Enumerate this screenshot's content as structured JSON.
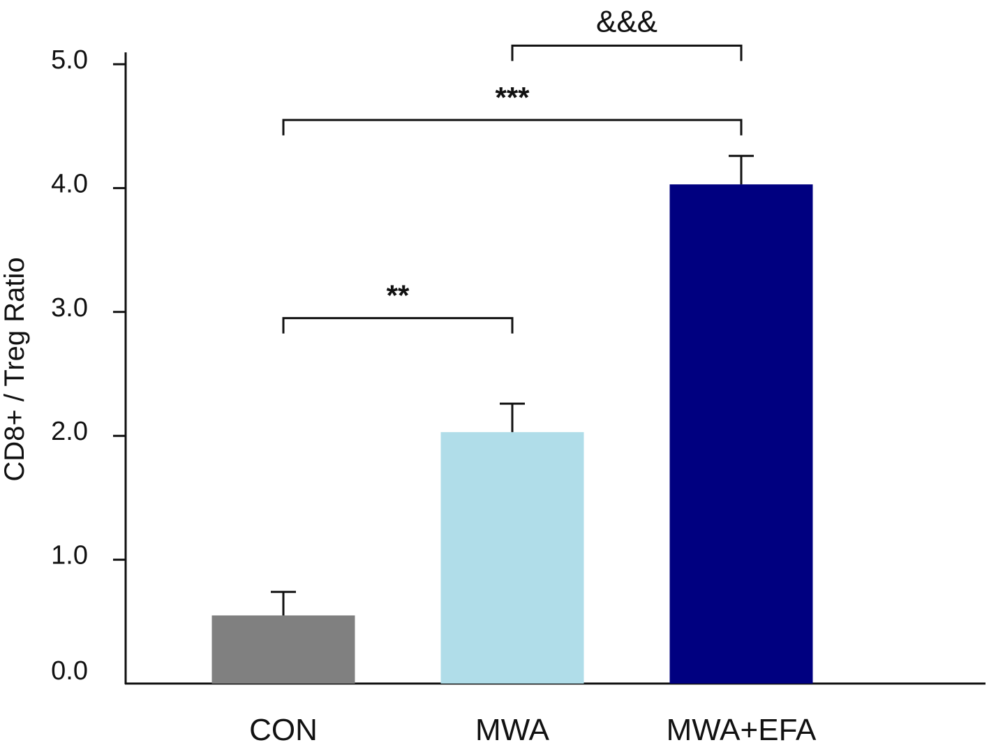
{
  "chart_data": {
    "type": "bar",
    "categories": [
      "CON",
      "MWA",
      "MWA+EFA"
    ],
    "values": [
      0.55,
      2.03,
      4.03
    ],
    "errors": [
      0.19,
      0.23,
      0.23
    ],
    "colors": [
      "#808080",
      "#b0dde9",
      "#000080"
    ],
    "ylabel": "CD8+ / Treg Ratio",
    "xlabel": "",
    "ylim": [
      0,
      5.0
    ],
    "yticks": [
      0.0,
      1.0,
      2.0,
      3.0,
      4.0,
      5.0
    ],
    "ytick_labels": [
      "0.0",
      "1.0",
      "2.0",
      "3.0",
      "4.0",
      "5.0"
    ],
    "grid": false,
    "significance": [
      {
        "from": "CON",
        "to": "MWA",
        "label": "**",
        "level": 2.95
      },
      {
        "from": "CON",
        "to": "MWA+EFA",
        "label": "***",
        "level": 4.55
      },
      {
        "from": "MWA",
        "to": "MWA+EFA",
        "label": "&&&",
        "level": 5.15
      }
    ]
  }
}
